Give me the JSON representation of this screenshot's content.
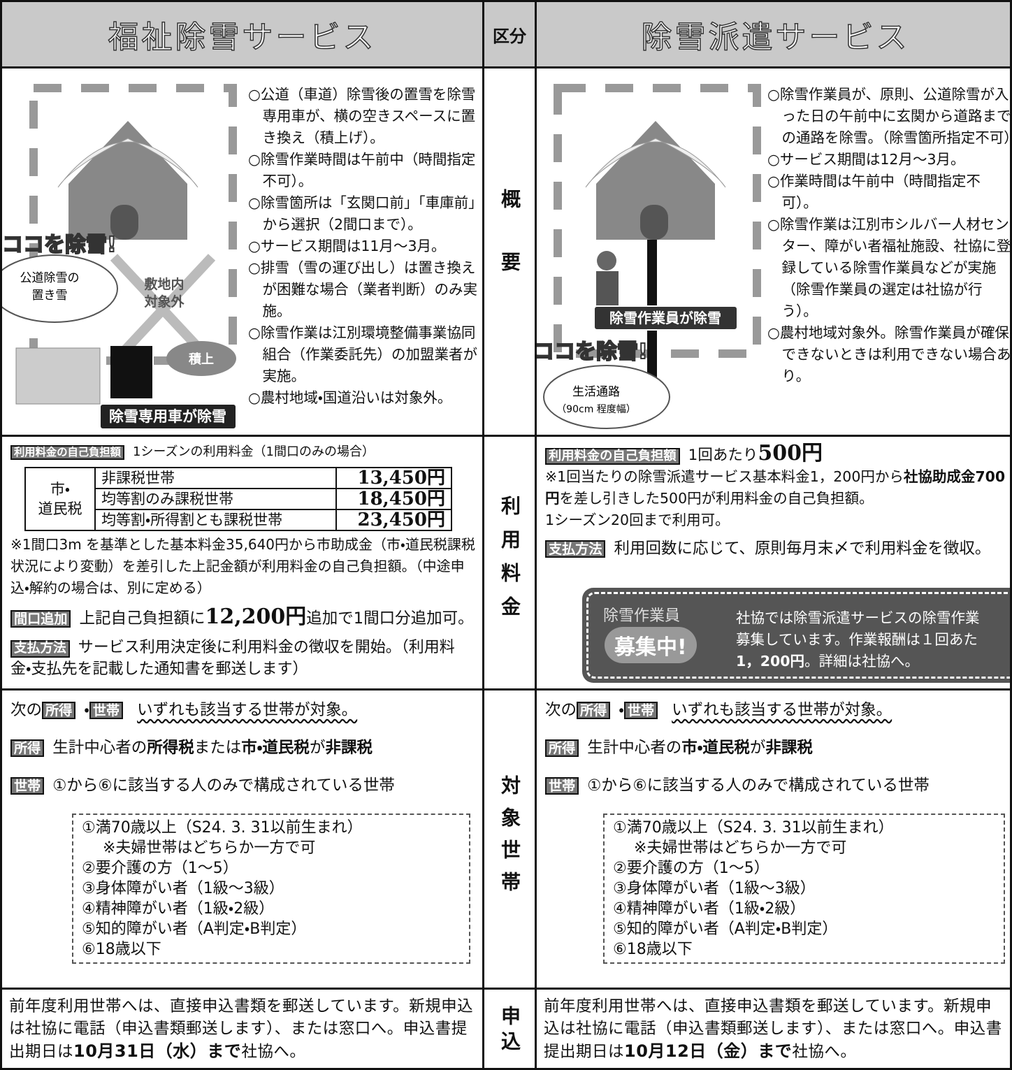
{
  "header": {
    "welfare": "福祉除雪サービス",
    "category": "区分",
    "dispatch": "除雪派遣サービス"
  },
  "labels": {
    "overview": "概要",
    "fee": "利用料金",
    "target": "対象世帯",
    "apply": "申込"
  },
  "welfare": {
    "overview": {
      "illustration": {
        "callout_top": "ココを除雪!",
        "callout": [
          "公道除雪の",
          "置き雪"
        ],
        "area": [
          "敷地内",
          "対象外"
        ],
        "pile": "積上",
        "vehicle": "除雪専用車が除雪"
      },
      "items": [
        "○公道（車道）除雪後の置雪を除雪専用車が、横の空きスペースに置き換え（積上げ）。",
        "○除雪作業時間は午前中（時間指定不可）。",
        "○除雪箇所は「玄関口前」「車庫前」から選択（2間口まで）。",
        "○サービス期間は11月～3月。",
        "○排雪（雪の運び出し）は置き換えが困難な場合（業者判断）のみ実施。",
        "○除雪作業は江別環境整備事業協同組合（作業委託先）の加盟業者が実施。",
        "○農村地域・国道沿いは対象外。"
      ]
    },
    "fee": {
      "header": [
        {
          "badge": "利用料金の自己負担額"
        },
        "1シーズンの利用料金（1間口のみの場合）"
      ],
      "table": {
        "group": [
          "市・",
          "道民税"
        ],
        "rows": [
          [
            "非課税世帯",
            "13,450円"
          ],
          [
            "均等割のみ課税世帯",
            "18,450円"
          ],
          [
            "均等割・所得割とも課税世帯",
            "23,450円"
          ]
        ]
      },
      "paragraphs": [
        [
          "※1間口3m を基準とした基本料金35,640円から市助成金（市・道民税課税状況により変動）を差引した上記金額が利用料金の自己負担額。（中途申込・解約の場合は、別に定める）"
        ],
        [
          {
            "badge": "間口追加"
          },
          "上記自己負担額に",
          {
            "bold": "12,200円"
          },
          "追加で1間口分追加可。"
        ],
        [
          {
            "badge": "支払方法"
          },
          "サービス利用決定後に利用料金の徴収を開始。（利用料金・支払先を記載した通知書を郵送します）"
        ]
      ]
    },
    "target": {
      "paragraphs": [
        [
          "次の",
          {
            "badge": "所得"
          },
          "・",
          {
            "badge": "世帯"
          },
          {
            "underline": "いずれも該当する世帯が対象。"
          }
        ],
        [
          {
            "badge": "所得"
          },
          "生計中心者の",
          {
            "bold": "所得税"
          },
          "または",
          {
            "bold": "市・道民税"
          },
          "が",
          {
            "bold": "非課税"
          }
        ],
        [
          {
            "badge": "世帯"
          },
          "①から⑥に該当する人のみで構成されている世帯"
        ]
      ],
      "conditions": [
        "①満70歳以上（S24. 3. 31以前生まれ）",
        "※夫婦世帯はどちらか一方で可",
        "②要介護の方（1～5）",
        "③身体障がい者（1級～3級）",
        "④精神障がい者（1級・2級）",
        "⑤知的障がい者（A判定・B判定）",
        "⑥18歳以下"
      ]
    },
    "apply": [
      "前年度利用世帯へは、直接申込書類を郵送しています。新規申込は社協に電話（申込書類郵送します）、または窓口へ。申込書提出期日は",
      {
        "bold": "10月31日（水）まで"
      },
      "社協へ。"
    ]
  },
  "dispatch": {
    "overview": {
      "illustration": {
        "worker": "除雪作業員が除雪",
        "callout_top": "ココを除雪!",
        "callout": [
          "生活通路",
          "（90cm 程度幅）"
        ]
      },
      "items": [
        "○除雪作業員が、原則、公道除雪が入った日の午前中に玄関から道路までの通路を除雪。（除雪箇所指定不可）",
        "○サービス期間は12月～3月。",
        "○作業時間は午前中（時間指定不可）。",
        "○除雪作業は江別市シルバー人材センター、障がい者福祉施設、社協に登録している除雪作業員などが実施（除雪作業員の選定は社協が行う）。",
        "○農村地域対象外。除雪作業員が確保できないときは利用できない場合あり。"
      ]
    },
    "fee": {
      "paragraphs": [
        [
          {
            "badge": "利用料金の自己負担額"
          },
          "1回あたり",
          {
            "bold": "500円"
          }
        ],
        [
          "※1回当たりの除雪派遣サービス基本料金1，200円から",
          {
            "bold": "社協助成金700円"
          },
          "を差し引きした500円が利用料金の自己負担額。"
        ],
        [
          "1シーズン20回まで利用可。"
        ],
        [
          {
            "badge": "支払方法"
          },
          "利用回数に応じて、原則毎月末〆で利用料金を徴収。"
        ]
      ],
      "recruit": {
        "tag": "除雪作業員",
        "badge": "募集中!",
        "lines": [
          [
            "社協では除雪派遣サービスの除雪作業"
          ],
          [
            "募集しています。作業報酬は１回あた"
          ],
          [
            {
              "bold": "1，200円"
            },
            "。詳細は社協へ。"
          ]
        ]
      }
    },
    "target": {
      "paragraphs": [
        [
          "次の",
          {
            "badge": "所得"
          },
          "・",
          {
            "badge": "世帯"
          },
          {
            "underline": "いずれも該当する世帯が対象。"
          }
        ],
        [
          {
            "badge": "所得"
          },
          "生計中心者の",
          {
            "bold": "市・道民税"
          },
          "が",
          {
            "bold": "非課税"
          }
        ],
        [
          {
            "badge": "世帯"
          },
          "①から⑥に該当する人のみで構成されている世帯"
        ]
      ],
      "conditions": [
        "①満70歳以上（S24. 3. 31以前生まれ）",
        "※夫婦世帯はどちらか一方で可",
        "②要介護の方（1～5）",
        "③身体障がい者（1級～3級）",
        "④精神障がい者（1級・2級）",
        "⑤知的障がい者（A判定・B判定）",
        "⑥18歳以下"
      ]
    },
    "apply": [
      "前年度利用世帯へは、直接申込書類を郵送しています。新規申込は社協に電話（申込書類郵送します）、または窓口へ。申込書提出期日は",
      {
        "bold": "10月12日（金）まで"
      },
      "社協へ。"
    ]
  }
}
